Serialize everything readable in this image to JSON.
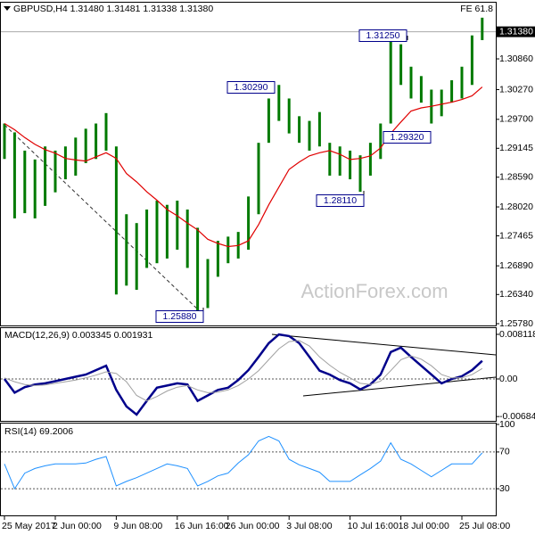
{
  "chart_data": [
    {
      "type": "ohlc",
      "title": "GBPUSD,H4 1.31480 1.31481 1.31338 1.31380",
      "note": "FE 61.8",
      "watermark": "ActionForex.com",
      "color": "#007a00",
      "grid": false,
      "categories": [
        "25 May 2017",
        null,
        null,
        null,
        null,
        "2 Jun 00:00",
        null,
        null,
        null,
        null,
        null,
        "9 Jun 08:00",
        null,
        null,
        null,
        null,
        null,
        "16 Jun 16:00",
        null,
        null,
        null,
        null,
        "26 Jun 00:00",
        null,
        null,
        null,
        null,
        null,
        "3 Jul 08:00",
        null,
        null,
        null,
        null,
        null,
        "10 Jul 16:00",
        null,
        null,
        null,
        null,
        "18 Jul 00:00",
        null,
        null,
        null,
        null,
        null,
        "25 Jul 08:00",
        null,
        null
      ],
      "high": [
        1.2962,
        1.2945,
        1.291,
        1.2893,
        1.2918,
        1.291,
        1.2918,
        1.2935,
        1.2952,
        1.2962,
        1.2982,
        1.2918,
        1.2788,
        1.2771,
        1.2797,
        1.2814,
        1.2806,
        1.2814,
        1.2797,
        1.2762,
        1.2702,
        1.2737,
        1.2745,
        1.2754,
        1.2822,
        1.2925,
        1.301,
        1.3036,
        1.301,
        1.2976,
        1.2967,
        1.2984,
        1.2925,
        1.2918,
        1.291,
        1.2901,
        1.2925,
        1.2962,
        1.3131,
        1.3114,
        1.3071,
        1.3053,
        1.3027,
        1.3027,
        1.3045,
        1.3071,
        1.3131,
        1.3165
      ],
      "low": [
        1.2894,
        1.278,
        1.279,
        1.278,
        1.2804,
        1.283,
        1.2855,
        1.2862,
        1.2886,
        1.2894,
        1.291,
        1.2634,
        1.2651,
        1.2643,
        1.2685,
        1.2694,
        1.2703,
        1.272,
        1.2685,
        1.2592,
        1.2608,
        1.2668,
        1.2694,
        1.2703,
        1.272,
        1.2788,
        1.2925,
        1.2967,
        1.2943,
        1.2925,
        1.291,
        1.2918,
        1.2862,
        1.2862,
        1.2855,
        1.2831,
        1.2862,
        1.2894,
        1.2962,
        1.3036,
        1.301,
        1.3002,
        1.2962,
        1.2976,
        1.3002,
        1.301,
        1.3036,
        1.3122
      ],
      "ma": {
        "color": "#e00000",
        "values": [
          1.2962,
          1.295,
          1.2935,
          1.2922,
          1.2912,
          1.2905,
          1.2895,
          1.2892,
          1.289,
          1.2898,
          1.2906,
          1.2895,
          1.2866,
          1.285,
          1.2831,
          1.2815,
          1.2797,
          1.2785,
          1.2771,
          1.2758,
          1.274,
          1.2732,
          1.2726,
          1.2728,
          1.2737,
          1.2768,
          1.2806,
          1.284,
          1.2874,
          1.2888,
          1.29,
          1.2906,
          1.291,
          1.2903,
          1.2893,
          1.2895,
          1.29,
          1.2915,
          1.2943,
          1.2965,
          1.2986,
          1.2992,
          1.2995,
          1.2999,
          1.3003,
          1.3008,
          1.3015,
          1.3032
        ]
      },
      "current": {
        "value": 1.3138,
        "label": "1.31380"
      },
      "annotations": [
        "1.31250",
        "1.30290",
        "1.29320",
        "1.28110",
        "1.25880"
      ],
      "ylim": [
        1.25746,
        1.31921
      ],
      "yticks": [
        {
          "value": 1.3086,
          "label": "1.30860"
        },
        {
          "value": 1.3027,
          "label": "1.30270"
        },
        {
          "value": 1.297,
          "label": "1.29700"
        },
        {
          "value": 1.29145,
          "label": "1.29145"
        },
        {
          "value": 1.2859,
          "label": "1.28590"
        },
        {
          "value": 1.2802,
          "label": "1.28020"
        },
        {
          "value": 1.27465,
          "label": "1.27465"
        },
        {
          "value": 1.2689,
          "label": "1.26890"
        },
        {
          "value": 1.2634,
          "label": "1.26340"
        },
        {
          "value": 1.2578,
          "label": "1.25780"
        }
      ]
    },
    {
      "type": "line",
      "title": "MACD(12,26,9) 0.003345 0.001931",
      "series": [
        {
          "color": "#00008b",
          "values": [
            0,
            -0.0025,
            -0.0015,
            -0.001,
            -0.0008,
            -0.0004,
            0,
            0.0004,
            0.0008,
            0.0016,
            0.0024,
            -0.002,
            -0.005,
            -0.0065,
            -0.004,
            -0.0016,
            -0.0012,
            -0.0008,
            -0.001,
            -0.004,
            -0.003,
            -0.002,
            -0.0016,
            -0.0002,
            0.0016,
            0.004,
            0.0065,
            0.0081,
            0.0078,
            0.0065,
            0.004,
            0.0015,
            0.0008,
            -0.0002,
            -0.0008,
            -0.0019,
            -0.001,
            0.0008,
            0.0049,
            0.0057,
            0.004,
            0.0024,
            0.0008,
            -0.0008,
            0,
            0.0005,
            0.0016,
            0.0033
          ]
        },
        {
          "color": "#a0a0a0",
          "values": [
            0.0002,
            -0.0005,
            -0.001,
            -0.0012,
            -0.0011,
            -0.0008,
            -0.0005,
            -0.0002,
            0.0002,
            0.0007,
            0.0013,
            0.001,
            -0.0005,
            -0.003,
            -0.004,
            -0.0032,
            -0.0022,
            -0.0015,
            -0.0012,
            -0.002,
            -0.0025,
            -0.0024,
            -0.002,
            -0.0012,
            0,
            0.0015,
            0.0035,
            0.0055,
            0.0068,
            0.007,
            0.006,
            0.004,
            0.0025,
            0.0012,
            0.0002,
            -0.0008,
            -0.001,
            -0.0004,
            0.0015,
            0.0035,
            0.0042,
            0.0036,
            0.0024,
            0.0008,
            0.0002,
            0.0002,
            0.0008,
            0.0019
          ]
        }
      ],
      "levels": [
        0
      ],
      "ylim": [
        -0.00763,
        0.00925
      ],
      "yticks": [
        0.008118,
        {
          "value": 0,
          "label": "0.00"
        },
        -0.006844
      ]
    },
    {
      "type": "line",
      "title": "RSI(14) 69.2006",
      "series": [
        {
          "color": "#1e90ff",
          "values": [
            57,
            30,
            47,
            52,
            55,
            57,
            57,
            57,
            58,
            62,
            65,
            33,
            38,
            42,
            47,
            52,
            57,
            55,
            52,
            33,
            38,
            44,
            47,
            58,
            67,
            82,
            87,
            82,
            62,
            56,
            52,
            48,
            38,
            38,
            38,
            45,
            52,
            60,
            80,
            62,
            57,
            50,
            43,
            50,
            57,
            57,
            57,
            69
          ]
        }
      ],
      "levels": [
        70,
        30
      ],
      "ylim": [
        0,
        100
      ],
      "yticks": [
        100,
        70,
        30
      ]
    }
  ]
}
